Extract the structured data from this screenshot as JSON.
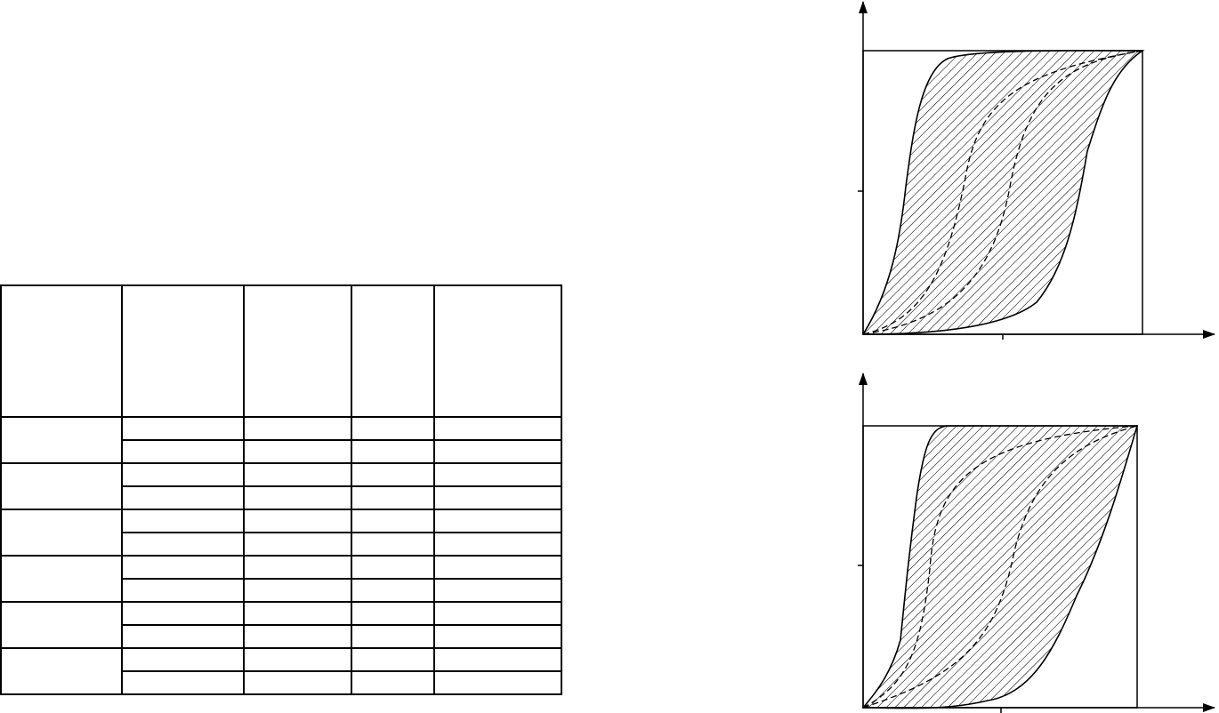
{
  "table": {
    "header": [
      "",
      "",
      "",
      "",
      ""
    ],
    "groups": [
      {
        "label": "",
        "rows": [
          [
            "",
            "",
            "",
            ""
          ],
          [
            "",
            "",
            "",
            ""
          ]
        ]
      },
      {
        "label": "",
        "rows": [
          [
            "",
            "",
            "",
            ""
          ],
          [
            "",
            "",
            "",
            ""
          ]
        ]
      },
      {
        "label": "",
        "rows": [
          [
            "",
            "",
            "",
            ""
          ],
          [
            "",
            "",
            "",
            ""
          ]
        ]
      },
      {
        "label": "",
        "rows": [
          [
            "",
            "",
            "",
            ""
          ],
          [
            "",
            "",
            "",
            ""
          ]
        ]
      },
      {
        "label": "",
        "rows": [
          [
            "",
            "",
            "",
            ""
          ],
          [
            "",
            "",
            "",
            ""
          ]
        ]
      },
      {
        "label": "",
        "rows": [
          [
            "",
            "",
            "",
            ""
          ],
          [
            "",
            "",
            "",
            ""
          ]
        ]
      }
    ]
  },
  "diagram": {
    "panels": [
      {
        "name": "top",
        "band": "hatched",
        "dashed_curves": 2
      },
      {
        "name": "bottom",
        "band": "hatched",
        "dashed_curves": 2
      }
    ],
    "colors": {
      "ink": "#000000",
      "background": "#ffffff"
    }
  }
}
